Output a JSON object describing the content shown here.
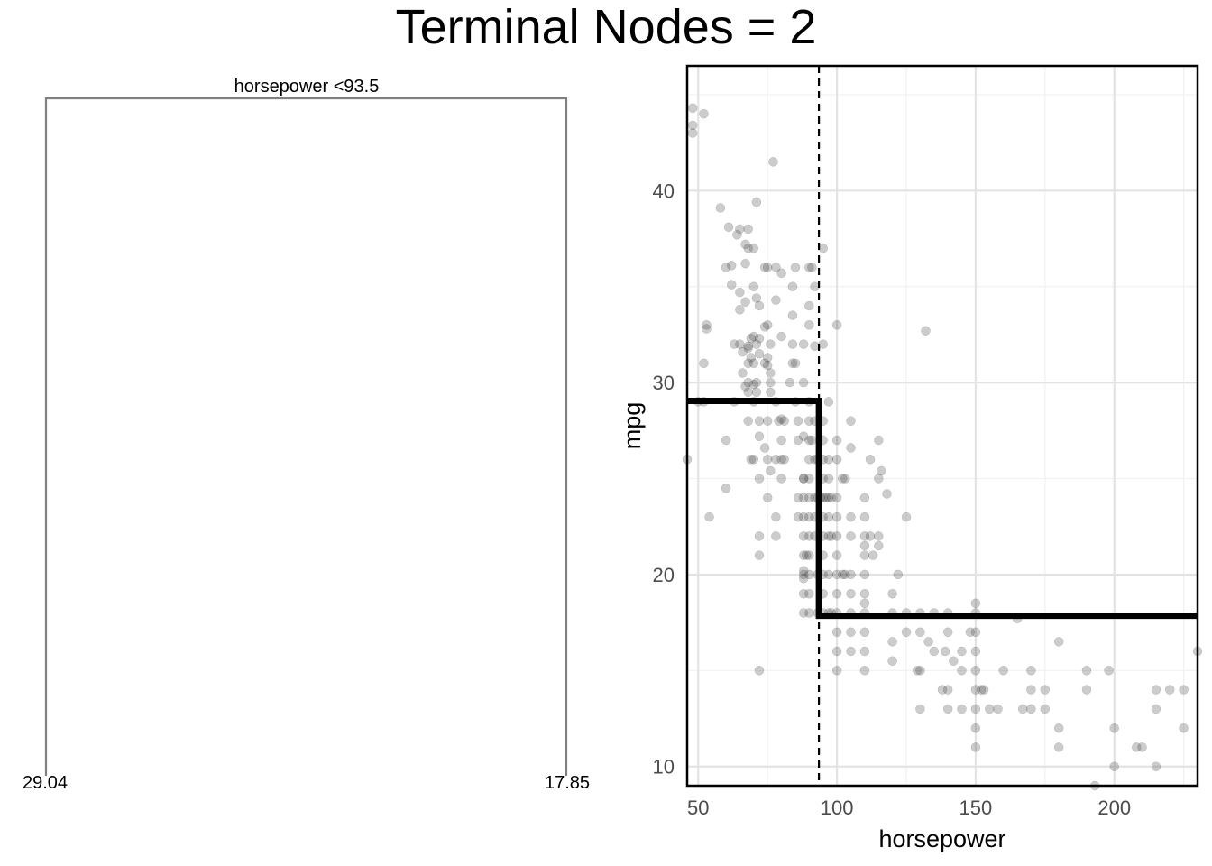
{
  "title": "Terminal Nodes = 2",
  "colors": {
    "tree_line": "#808080",
    "grid_major": "#e3e3e3",
    "grid_minor": "#f1f1f1",
    "point_fill": "#333333",
    "step_line": "#000000",
    "panel_border": "#000000"
  },
  "tree": {
    "split_label": "horsepower <93.5",
    "leaves": [
      "29.04",
      "17.85"
    ]
  },
  "chart_data": {
    "type": "scatter",
    "xlabel": "horsepower",
    "ylabel": "mpg",
    "xlim": [
      46,
      230
    ],
    "ylim": [
      9,
      46.5
    ],
    "x_ticks": [
      50,
      100,
      150,
      200
    ],
    "y_ticks": [
      10,
      20,
      30,
      40
    ],
    "x_tick_labels": [
      "50",
      "100",
      "150",
      "200"
    ],
    "y_tick_labels": [
      "10",
      "20",
      "30",
      "40"
    ],
    "grid": true,
    "split": {
      "variable": "horsepower",
      "threshold": 93.5
    },
    "region_means": [
      {
        "x_from": 46,
        "x_to": 93.5,
        "mpg": 29.04
      },
      {
        "x_from": 93.5,
        "x_to": 230,
        "mpg": 17.85
      }
    ],
    "points": [
      [
        46,
        26
      ],
      [
        48,
        43
      ],
      [
        48,
        43.4
      ],
      [
        48,
        44.3
      ],
      [
        50,
        29
      ],
      [
        52,
        44
      ],
      [
        52,
        29
      ],
      [
        53,
        32.8
      ],
      [
        53,
        33
      ],
      [
        54,
        23
      ],
      [
        52,
        31
      ],
      [
        58,
        39.1
      ],
      [
        60,
        36
      ],
      [
        60,
        27
      ],
      [
        60,
        24.5
      ],
      [
        61,
        38.1
      ],
      [
        62,
        35.1
      ],
      [
        62,
        36.1
      ],
      [
        63,
        32
      ],
      [
        63,
        29
      ],
      [
        64,
        37.7
      ],
      [
        65,
        38
      ],
      [
        65,
        34.7
      ],
      [
        65,
        33.8
      ],
      [
        65,
        32
      ],
      [
        66,
        30.5
      ],
      [
        66,
        31.6
      ],
      [
        67,
        37.2
      ],
      [
        67,
        36.2
      ],
      [
        67,
        34.2
      ],
      [
        67,
        29.8
      ],
      [
        68,
        38
      ],
      [
        68,
        37
      ],
      [
        68,
        31.9
      ],
      [
        68,
        31.8
      ],
      [
        68,
        31
      ],
      [
        68,
        30
      ],
      [
        68,
        29.5
      ],
      [
        68,
        28
      ],
      [
        69,
        32.3
      ],
      [
        69,
        31.3
      ],
      [
        69,
        26
      ],
      [
        70,
        32.4
      ],
      [
        70,
        37
      ],
      [
        70,
        35
      ],
      [
        70,
        31
      ],
      [
        70,
        29.9
      ],
      [
        70,
        29
      ],
      [
        70,
        26
      ],
      [
        71,
        39.4
      ],
      [
        71,
        34.4
      ],
      [
        71,
        32
      ],
      [
        71,
        30
      ],
      [
        71,
        29.5
      ],
      [
        72,
        32.3
      ],
      [
        72,
        34
      ],
      [
        72,
        31.5
      ],
      [
        72,
        28
      ],
      [
        72,
        27.2
      ],
      [
        72,
        25
      ],
      [
        72,
        22
      ],
      [
        72,
        21
      ],
      [
        72,
        15
      ],
      [
        74,
        36
      ],
      [
        74,
        32.9
      ],
      [
        74,
        31
      ],
      [
        74,
        26.6
      ],
      [
        75,
        36
      ],
      [
        75,
        33
      ],
      [
        75,
        31.3
      ],
      [
        75,
        30.9
      ],
      [
        75,
        28
      ],
      [
        75,
        26
      ],
      [
        75,
        24
      ],
      [
        76,
        32
      ],
      [
        76,
        30.5
      ],
      [
        76,
        29.5
      ],
      [
        76,
        25.4
      ],
      [
        77,
        41.5
      ],
      [
        76,
        30
      ],
      [
        78,
        36
      ],
      [
        78,
        34.3
      ],
      [
        78,
        29
      ],
      [
        78,
        26
      ],
      [
        78,
        23
      ],
      [
        78,
        22
      ],
      [
        79,
        28
      ],
      [
        80,
        35.7
      ],
      [
        80,
        32.4
      ],
      [
        80,
        28.1
      ],
      [
        80,
        26
      ],
      [
        80,
        25
      ],
      [
        80,
        27
      ],
      [
        81,
        28
      ],
      [
        81,
        26
      ],
      [
        83,
        30
      ],
      [
        84,
        35
      ],
      [
        84,
        32
      ],
      [
        84,
        33.5
      ],
      [
        84,
        31
      ],
      [
        85,
        36
      ],
      [
        85,
        31
      ],
      [
        85,
        29
      ],
      [
        86,
        24
      ],
      [
        86,
        23
      ],
      [
        86,
        27
      ],
      [
        86,
        28
      ],
      [
        88,
        30
      ],
      [
        88,
        32
      ],
      [
        88,
        27.2
      ],
      [
        88,
        25
      ],
      [
        88,
        24
      ],
      [
        88,
        23
      ],
      [
        88,
        22
      ],
      [
        88,
        21
      ],
      [
        88,
        20.2
      ],
      [
        88,
        19.8
      ],
      [
        88,
        18
      ],
      [
        88,
        20
      ],
      [
        88,
        19
      ],
      [
        88,
        25
      ],
      [
        89,
        21
      ],
      [
        90,
        36
      ],
      [
        90,
        34
      ],
      [
        90,
        33
      ],
      [
        90,
        29
      ],
      [
        90,
        28
      ],
      [
        90,
        27
      ],
      [
        90,
        26
      ],
      [
        90,
        25
      ],
      [
        90,
        24
      ],
      [
        90,
        23
      ],
      [
        90,
        22
      ],
      [
        90,
        21
      ],
      [
        90,
        20
      ],
      [
        90,
        19
      ],
      [
        90,
        18
      ],
      [
        91,
        27
      ],
      [
        91,
        36
      ],
      [
        92,
        35
      ],
      [
        92,
        31.9
      ],
      [
        92,
        28
      ],
      [
        92,
        26
      ],
      [
        92,
        24
      ],
      [
        92,
        23
      ],
      [
        92,
        22
      ],
      [
        93,
        26
      ],
      [
        93,
        24
      ],
      [
        93,
        20
      ],
      [
        93,
        18
      ],
      [
        94,
        24
      ],
      [
        95,
        37
      ],
      [
        95,
        32
      ],
      [
        95,
        28
      ],
      [
        95,
        27
      ],
      [
        95,
        26
      ],
      [
        95,
        25
      ],
      [
        95,
        24
      ],
      [
        95,
        23
      ],
      [
        95,
        22
      ],
      [
        95,
        21
      ],
      [
        95,
        20
      ],
      [
        95,
        19
      ],
      [
        95,
        18
      ],
      [
        96,
        24
      ],
      [
        97,
        29
      ],
      [
        97,
        26
      ],
      [
        97,
        25
      ],
      [
        97,
        24
      ],
      [
        97,
        23
      ],
      [
        97,
        22
      ],
      [
        97,
        18
      ],
      [
        97,
        20
      ],
      [
        98,
        24
      ],
      [
        98,
        22
      ],
      [
        98,
        18
      ],
      [
        100,
        33
      ],
      [
        100,
        27
      ],
      [
        100,
        26
      ],
      [
        100,
        24
      ],
      [
        100,
        23
      ],
      [
        100,
        22
      ],
      [
        100,
        21
      ],
      [
        100,
        20
      ],
      [
        100,
        19
      ],
      [
        100,
        18
      ],
      [
        100,
        17
      ],
      [
        100,
        16
      ],
      [
        100,
        15
      ],
      [
        102,
        25
      ],
      [
        102,
        20
      ],
      [
        103,
        25
      ],
      [
        103,
        20
      ],
      [
        105,
        23
      ],
      [
        105,
        20
      ],
      [
        105,
        19
      ],
      [
        105,
        18
      ],
      [
        105,
        17
      ],
      [
        105,
        16
      ],
      [
        105,
        28
      ],
      [
        105,
        26.6
      ],
      [
        105,
        22
      ],
      [
        110,
        24
      ],
      [
        110,
        23
      ],
      [
        110,
        22
      ],
      [
        110,
        21.5
      ],
      [
        110,
        21
      ],
      [
        110,
        20
      ],
      [
        110,
        19
      ],
      [
        110,
        18.5
      ],
      [
        110,
        18
      ],
      [
        110,
        17
      ],
      [
        110,
        16
      ],
      [
        110,
        15
      ],
      [
        112,
        22
      ],
      [
        112,
        26
      ],
      [
        113,
        21
      ],
      [
        115,
        25
      ],
      [
        115,
        22
      ],
      [
        115,
        21.5
      ],
      [
        115,
        27
      ],
      [
        116,
        25.4
      ],
      [
        118,
        24.2
      ],
      [
        120,
        19
      ],
      [
        120,
        18
      ],
      [
        120,
        16.5
      ],
      [
        120,
        15.5
      ],
      [
        122,
        20
      ],
      [
        125,
        18
      ],
      [
        125,
        17
      ],
      [
        125,
        23
      ],
      [
        129,
        15
      ],
      [
        130,
        18
      ],
      [
        130,
        17
      ],
      [
        130,
        15
      ],
      [
        130,
        13
      ],
      [
        132,
        32.7
      ],
      [
        133,
        16.5
      ],
      [
        135,
        18
      ],
      [
        135,
        16
      ],
      [
        138,
        14
      ],
      [
        139,
        16
      ],
      [
        140,
        18
      ],
      [
        140,
        17
      ],
      [
        140,
        14
      ],
      [
        140,
        13
      ],
      [
        142,
        15.5
      ],
      [
        145,
        16
      ],
      [
        145,
        15
      ],
      [
        145,
        13
      ],
      [
        148,
        17
      ],
      [
        150,
        18.5
      ],
      [
        150,
        18
      ],
      [
        150,
        17
      ],
      [
        150,
        16
      ],
      [
        150,
        15
      ],
      [
        150,
        14
      ],
      [
        150,
        13
      ],
      [
        150,
        12
      ],
      [
        150,
        11
      ],
      [
        152,
        14
      ],
      [
        153,
        14
      ],
      [
        155,
        13
      ],
      [
        158,
        13
      ],
      [
        160,
        15
      ],
      [
        165,
        17.7
      ],
      [
        167,
        13
      ],
      [
        170,
        15
      ],
      [
        170,
        14
      ],
      [
        170,
        13
      ],
      [
        175,
        14
      ],
      [
        175,
        13
      ],
      [
        180,
        16.5
      ],
      [
        180,
        12
      ],
      [
        180,
        11
      ],
      [
        190,
        15
      ],
      [
        190,
        14
      ],
      [
        193,
        9
      ],
      [
        198,
        15
      ],
      [
        200,
        12
      ],
      [
        200,
        10
      ],
      [
        208,
        11
      ],
      [
        210,
        11
      ],
      [
        215,
        14
      ],
      [
        215,
        13
      ],
      [
        215,
        10
      ],
      [
        220,
        14
      ],
      [
        225,
        14
      ],
      [
        225,
        12
      ],
      [
        230,
        16
      ]
    ]
  }
}
